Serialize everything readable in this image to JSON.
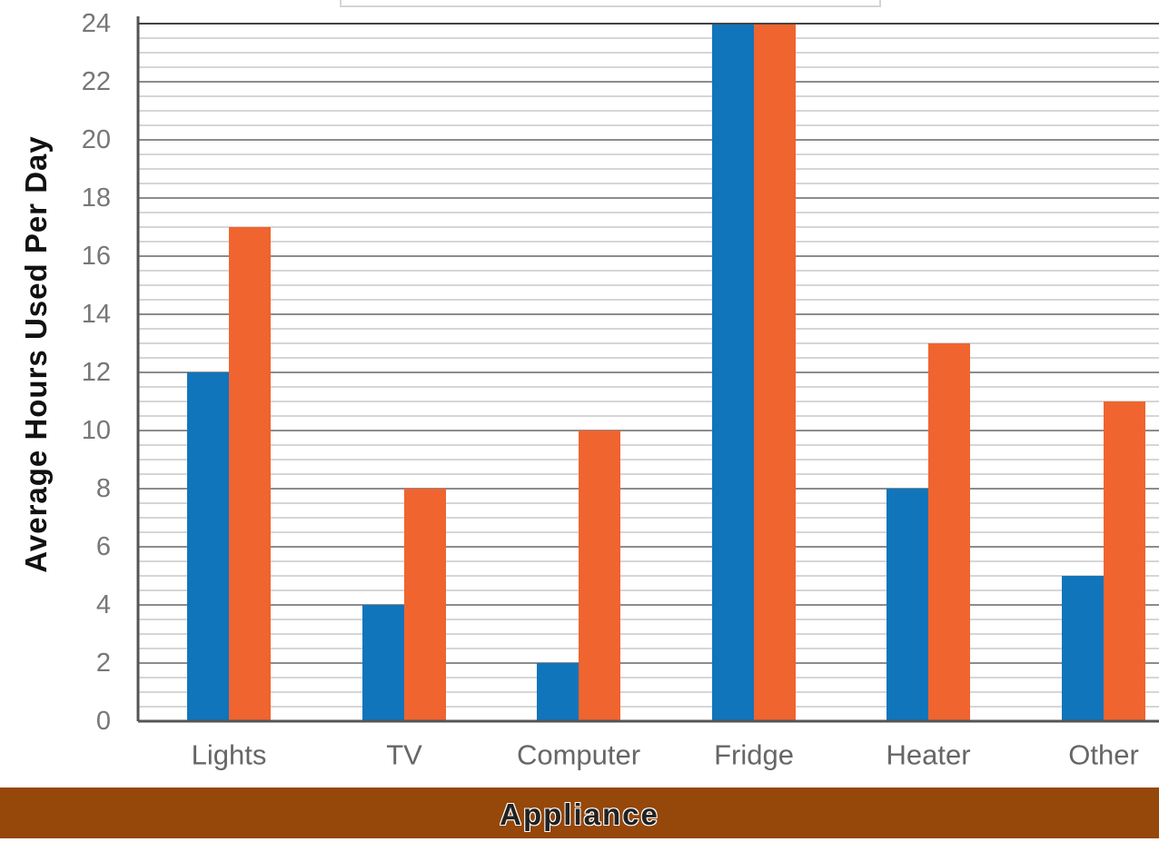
{
  "chart_data": {
    "type": "bar",
    "categories": [
      "Lights",
      "TV",
      "Computer",
      "Fridge",
      "Heater",
      "Other"
    ],
    "series": [
      {
        "values": [
          12,
          4,
          2,
          24,
          8,
          5
        ],
        "color": "#1075bb"
      },
      {
        "values": [
          17,
          8,
          10,
          24,
          13,
          11
        ],
        "color": "#f0642f"
      }
    ],
    "ylabel": "Average Hours Used Per Day",
    "xlabel": "Appliance",
    "ylim": [
      0,
      24
    ],
    "yticks": [
      0,
      2,
      4,
      6,
      8,
      10,
      12,
      14,
      16,
      18,
      20,
      22,
      24
    ],
    "grid": true,
    "minor_grid": true,
    "legend": "top, cropped",
    "colors": {
      "grid": "#8c8c8c",
      "minor_grid": "#d6d6d6",
      "axis": "#555555",
      "xlabel_band": "#96470a"
    }
  }
}
